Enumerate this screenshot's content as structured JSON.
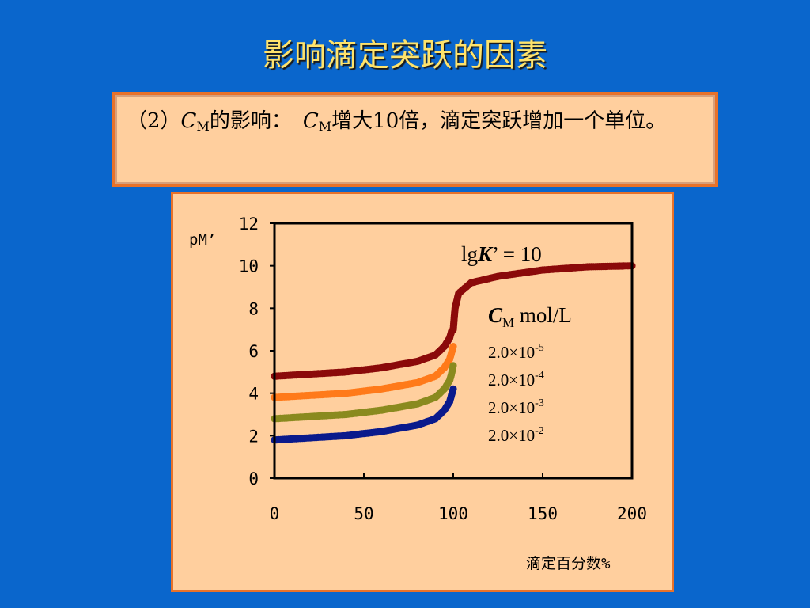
{
  "slide": {
    "title": "影响滴定突跃的因素"
  },
  "note": {
    "prefix": "（2）",
    "sym1": "C",
    "sub1": "M",
    "mid": "的影响：",
    "sym2": "C",
    "sub2": "M",
    "rest": "增大10倍，滴定突跃增加一个单位。"
  },
  "chart_data": {
    "type": "scatter",
    "xlabel": "滴定百分数%",
    "ylabel": "pM’",
    "xlim": [
      0,
      200
    ],
    "ylim": [
      0,
      12
    ],
    "xticks": [
      "0",
      "50",
      "100",
      "150",
      "200"
    ],
    "yticks": [
      "0",
      "2",
      "4",
      "6",
      "8",
      "10",
      "12"
    ],
    "grid": false,
    "annotation": {
      "lgk_prefix": "lg",
      "lgk_symbol": "K",
      "lgk_suffix": "’ = 10",
      "cm_symbol": "C",
      "cm_sub": "M",
      "cm_unit": " mol/L"
    },
    "legend_placement": "right, inside plot",
    "series": [
      {
        "label_base": "2.0×10",
        "label_exp": "-5",
        "color": "#8B0A0A",
        "points": [
          [
            0,
            4.8
          ],
          [
            20,
            4.9
          ],
          [
            40,
            5.0
          ],
          [
            60,
            5.2
          ],
          [
            80,
            5.5
          ],
          [
            90,
            5.8
          ],
          [
            95,
            6.2
          ],
          [
            98,
            6.6
          ],
          [
            99,
            6.9
          ],
          [
            100,
            7.0
          ],
          [
            101,
            8.0
          ],
          [
            103,
            8.7
          ],
          [
            110,
            9.2
          ],
          [
            125,
            9.5
          ],
          [
            150,
            9.8
          ],
          [
            175,
            9.95
          ],
          [
            200,
            10.0
          ]
        ]
      },
      {
        "label_base": "2.0×10",
        "label_exp": "-4",
        "color": "#FF7A1A",
        "points": [
          [
            0,
            3.8
          ],
          [
            20,
            3.9
          ],
          [
            40,
            4.0
          ],
          [
            60,
            4.2
          ],
          [
            80,
            4.5
          ],
          [
            90,
            4.8
          ],
          [
            95,
            5.2
          ],
          [
            98,
            5.6
          ],
          [
            99,
            5.9
          ],
          [
            100,
            6.2
          ]
        ]
      },
      {
        "label_base": "2.0×10",
        "label_exp": "-3",
        "color": "#8A8A1F",
        "points": [
          [
            0,
            2.8
          ],
          [
            20,
            2.9
          ],
          [
            40,
            3.0
          ],
          [
            60,
            3.2
          ],
          [
            80,
            3.5
          ],
          [
            90,
            3.8
          ],
          [
            95,
            4.2
          ],
          [
            98,
            4.6
          ],
          [
            99,
            4.9
          ],
          [
            100,
            5.3
          ]
        ]
      },
      {
        "label_base": "2.0×10",
        "label_exp": "-2",
        "color": "#0A1A8C",
        "points": [
          [
            0,
            1.8
          ],
          [
            20,
            1.9
          ],
          [
            40,
            2.0
          ],
          [
            60,
            2.2
          ],
          [
            80,
            2.5
          ],
          [
            90,
            2.8
          ],
          [
            95,
            3.2
          ],
          [
            98,
            3.6
          ],
          [
            99,
            3.9
          ],
          [
            100,
            4.2
          ]
        ]
      }
    ]
  }
}
